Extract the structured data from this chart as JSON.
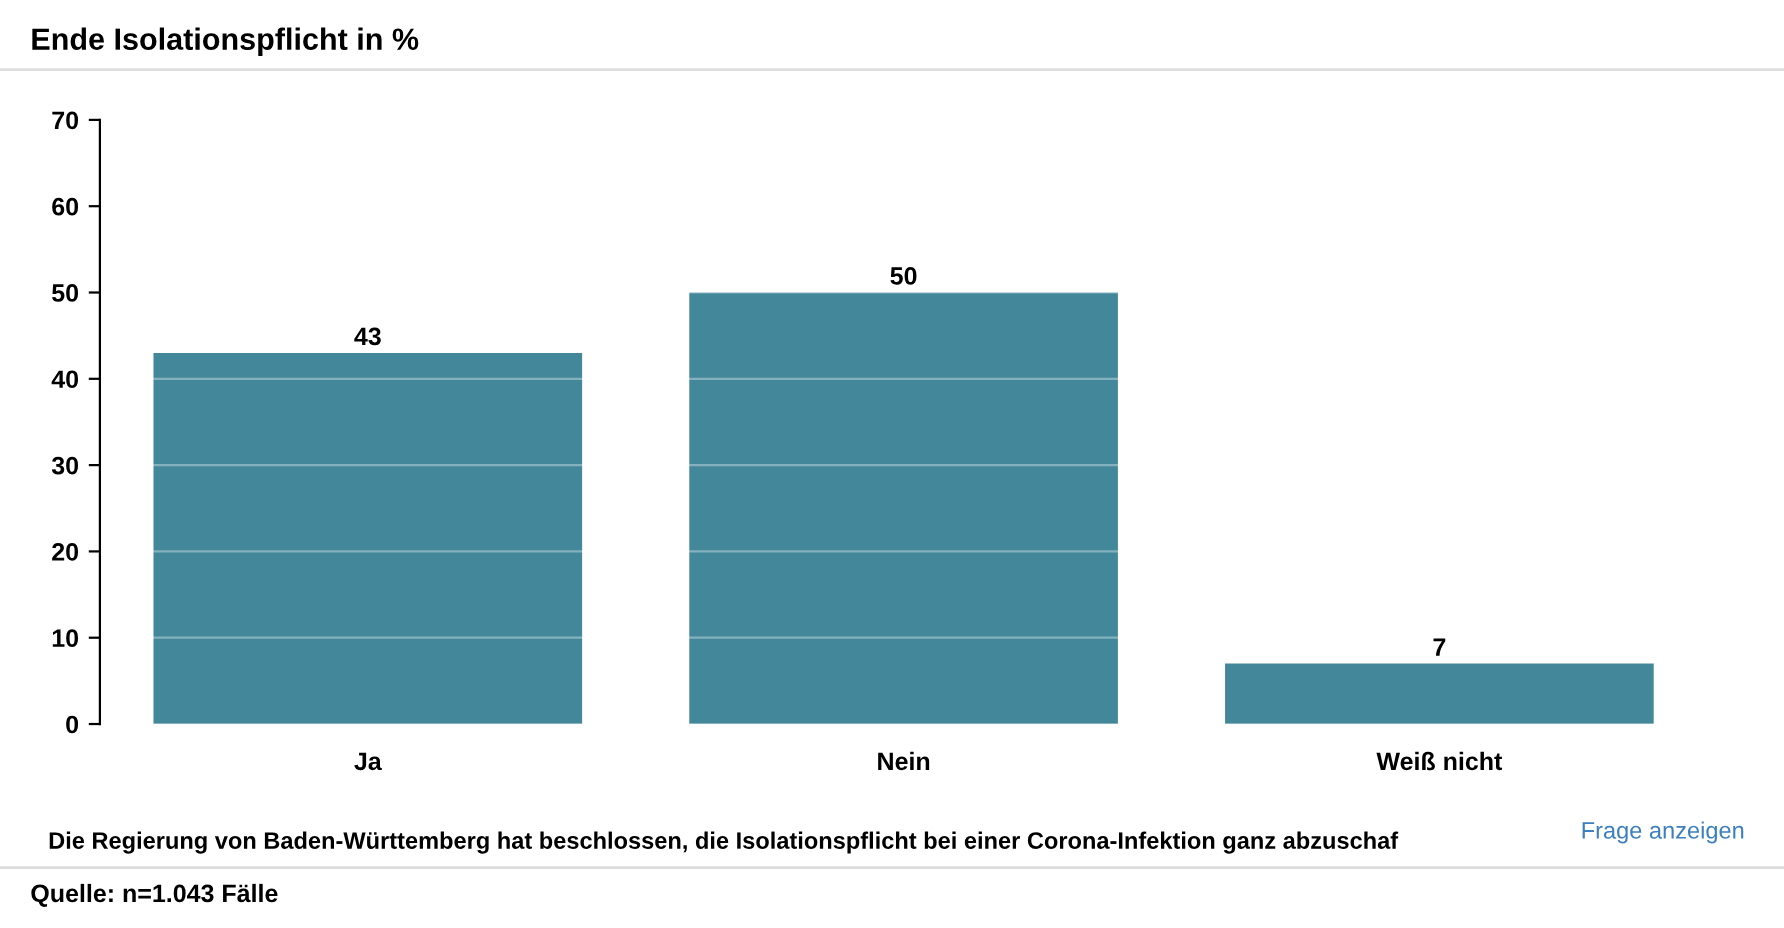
{
  "chart_data": {
    "type": "bar",
    "title": "Ende Isolationspflicht in %",
    "categories": [
      "Ja",
      "Nein",
      "Weiß nicht"
    ],
    "values": [
      43,
      50,
      7
    ],
    "color": "#43889a",
    "ylim": [
      0,
      70
    ],
    "yticks": [
      0,
      10,
      20,
      30,
      40,
      50,
      60,
      70
    ],
    "grid": "y",
    "data_labels": true,
    "annotations": [
      "Die Regierung von Baden-Württemberg hat beschlossen, die Isolationspflicht bei einer Corona-Infektion ganz abzuschaf",
      "Frage anzeigen",
      "Quelle: n=1.043 Fälle"
    ]
  }
}
